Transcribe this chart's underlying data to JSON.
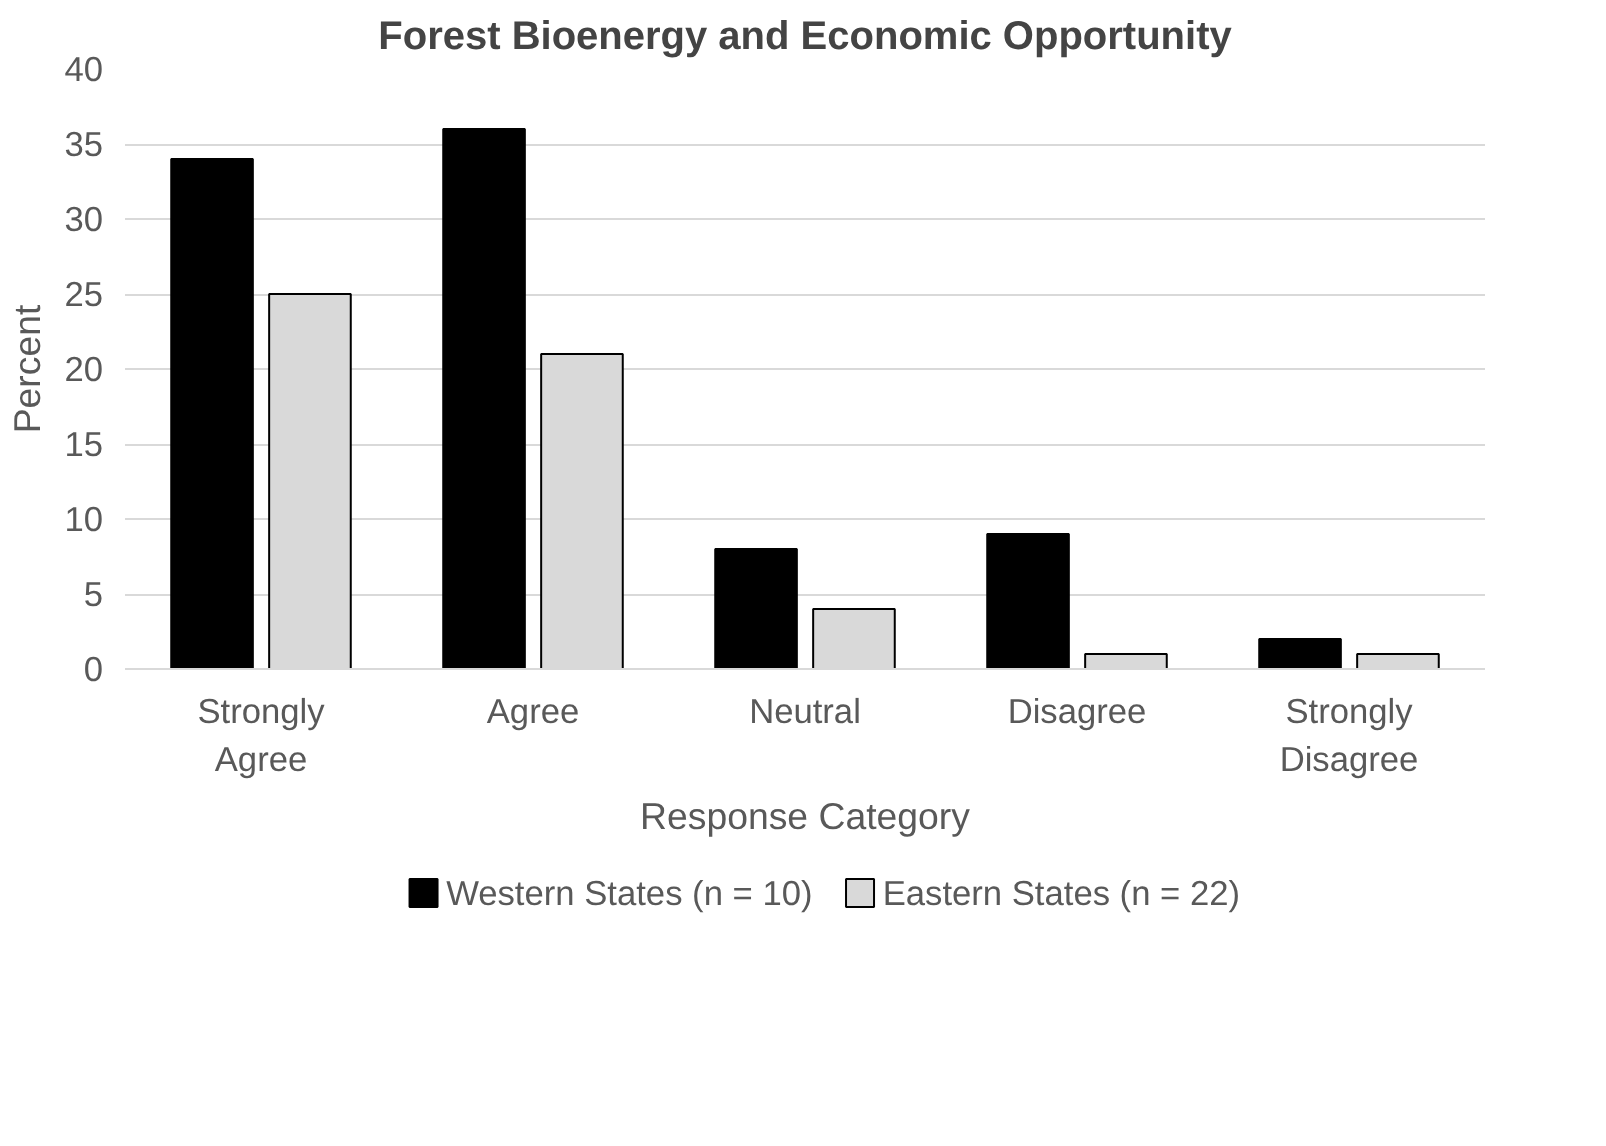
{
  "chart_data": {
    "type": "bar",
    "title": "Forest Bioenergy and Economic Opportunity",
    "xlabel": "Response Category",
    "ylabel": "Percent",
    "categories": [
      "Strongly Agree",
      "Agree",
      "Neutral",
      "Disagree",
      "Strongly Disagree"
    ],
    "series": [
      {
        "name": "Western States (n = 10)",
        "color": "#000000",
        "values": [
          34,
          36,
          8,
          9,
          2
        ]
      },
      {
        "name": "Eastern States (n = 22)",
        "color": "#d9d9d9",
        "values": [
          25,
          21,
          4,
          1,
          1
        ]
      }
    ],
    "ylim": [
      0,
      40
    ],
    "yticks": [
      0,
      5,
      10,
      15,
      20,
      25,
      30,
      35,
      40
    ],
    "grid": "y",
    "legend": "bottom"
  }
}
